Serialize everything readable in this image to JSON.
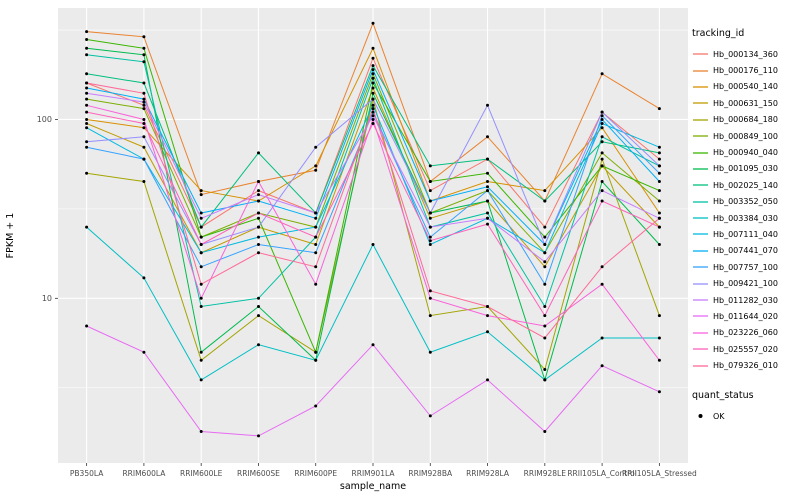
{
  "chart_data": {
    "type": "line",
    "x_label": "sample_name",
    "y_label": "FPKM + 1",
    "y_scale": "log10",
    "ylim": [
      1.2,
      420
    ],
    "y_ticks": [
      10,
      100
    ],
    "y_minor_ticks": [
      3.162,
      31.623,
      316.228
    ],
    "panel_bg": "#EBEBEB",
    "grid_color": "#FFFFFF",
    "point_color": "#000000",
    "tick_text_color": "#4D4D4D",
    "categories": [
      "PB350LA",
      "RRIM600LA",
      "RRIM600LE",
      "RRIM600SE",
      "RRIM600PE",
      "RRIM901LA",
      "RRIM928BA",
      "RRIM928LA",
      "RRIM928LE",
      "RRII105LA_Control",
      "RRII105LA_Stressed"
    ],
    "series": [
      {
        "name": "Hb_000134_360",
        "color": "#F8766D",
        "values": [
          160,
          120,
          25,
          40,
          30,
          220,
          40,
          60,
          25,
          110,
          60
        ]
      },
      {
        "name": "Hb_000176_110",
        "color": "#EA8331",
        "values": [
          310,
          290,
          38,
          45,
          52,
          345,
          45,
          80,
          35,
          180,
          115
        ]
      },
      {
        "name": "Hb_000540_140",
        "color": "#D89000",
        "values": [
          100,
          90,
          40,
          35,
          55,
          250,
          35,
          45,
          40,
          90,
          30
        ]
      },
      {
        "name": "Hb_000631_150",
        "color": "#C09B00",
        "values": [
          95,
          70,
          18,
          25,
          20,
          150,
          28,
          35,
          15,
          55,
          25
        ]
      },
      {
        "name": "Hb_000684_180",
        "color": "#A3A500",
        "values": [
          50,
          45,
          4.5,
          8,
          5,
          130,
          8,
          9,
          4,
          60,
          8
        ]
      },
      {
        "name": "Hb_000849_100",
        "color": "#7CAE00",
        "values": [
          130,
          115,
          22,
          30,
          25,
          180,
          30,
          40,
          18,
          65,
          35
        ]
      },
      {
        "name": "Hb_000940_040",
        "color": "#39B600",
        "values": [
          280,
          250,
          22,
          28,
          5,
          160,
          45,
          50,
          22,
          55,
          40
        ]
      },
      {
        "name": "Hb_001095_030",
        "color": "#00BB4E",
        "values": [
          250,
          230,
          5,
          9,
          4.5,
          140,
          30,
          35,
          3.5,
          45,
          20
        ]
      },
      {
        "name": "Hb_002025_140",
        "color": "#00BF7D",
        "values": [
          180,
          160,
          25,
          65,
          30,
          200,
          55,
          60,
          35,
          75,
          65
        ]
      },
      {
        "name": "Hb_003352_050",
        "color": "#00C1A3",
        "values": [
          230,
          210,
          9,
          10,
          22,
          170,
          25,
          30,
          9,
          80,
          55
        ]
      },
      {
        "name": "Hb_003384_030",
        "color": "#00BFC4",
        "values": [
          25,
          13,
          3.5,
          5.5,
          4.5,
          20,
          5,
          6.5,
          3.5,
          6,
          6
        ]
      },
      {
        "name": "Hb_007111_040",
        "color": "#00BAE0",
        "values": [
          90,
          60,
          18,
          22,
          25,
          120,
          20,
          28,
          18,
          95,
          70
        ]
      },
      {
        "name": "Hb_007441_070",
        "color": "#00B0F6",
        "values": [
          150,
          130,
          30,
          35,
          28,
          190,
          35,
          42,
          20,
          100,
          45
        ]
      },
      {
        "name": "Hb_007757_100",
        "color": "#35A2FF",
        "values": [
          70,
          60,
          15,
          20,
          18,
          110,
          22,
          40,
          12,
          105,
          50
        ]
      },
      {
        "name": "Hb_009421_100",
        "color": "#9590FF",
        "values": [
          75,
          80,
          20,
          25,
          70,
          130,
          30,
          120,
          20,
          110,
          55
        ]
      },
      {
        "name": "Hb_011282_030",
        "color": "#C77CFF",
        "values": [
          140,
          125,
          28,
          38,
          30,
          105,
          25,
          28,
          16,
          40,
          28
        ]
      },
      {
        "name": "Hb_011644_020",
        "color": "#E76BF3",
        "values": [
          7,
          5,
          1.8,
          1.7,
          2.5,
          5.5,
          2.2,
          3.5,
          1.8,
          4.2,
          3
        ]
      },
      {
        "name": "Hb_023226_060",
        "color": "#FA62DB",
        "values": [
          120,
          100,
          10,
          45,
          12,
          100,
          10,
          8,
          7,
          12,
          4.5
        ]
      },
      {
        "name": "Hb_025557_020",
        "color": "#FF62BC",
        "values": [
          110,
          95,
          20,
          30,
          22,
          95,
          21,
          26,
          8,
          35,
          25
        ]
      },
      {
        "name": "Hb_079326_010",
        "color": "#FF6A98",
        "values": [
          160,
          140,
          12,
          18,
          15,
          115,
          11,
          9,
          6,
          15,
          28
        ]
      }
    ],
    "legend": {
      "tracking_title": "tracking_id",
      "quant_title": "quant_status",
      "quant_items": [
        {
          "label": "OK"
        }
      ]
    }
  }
}
